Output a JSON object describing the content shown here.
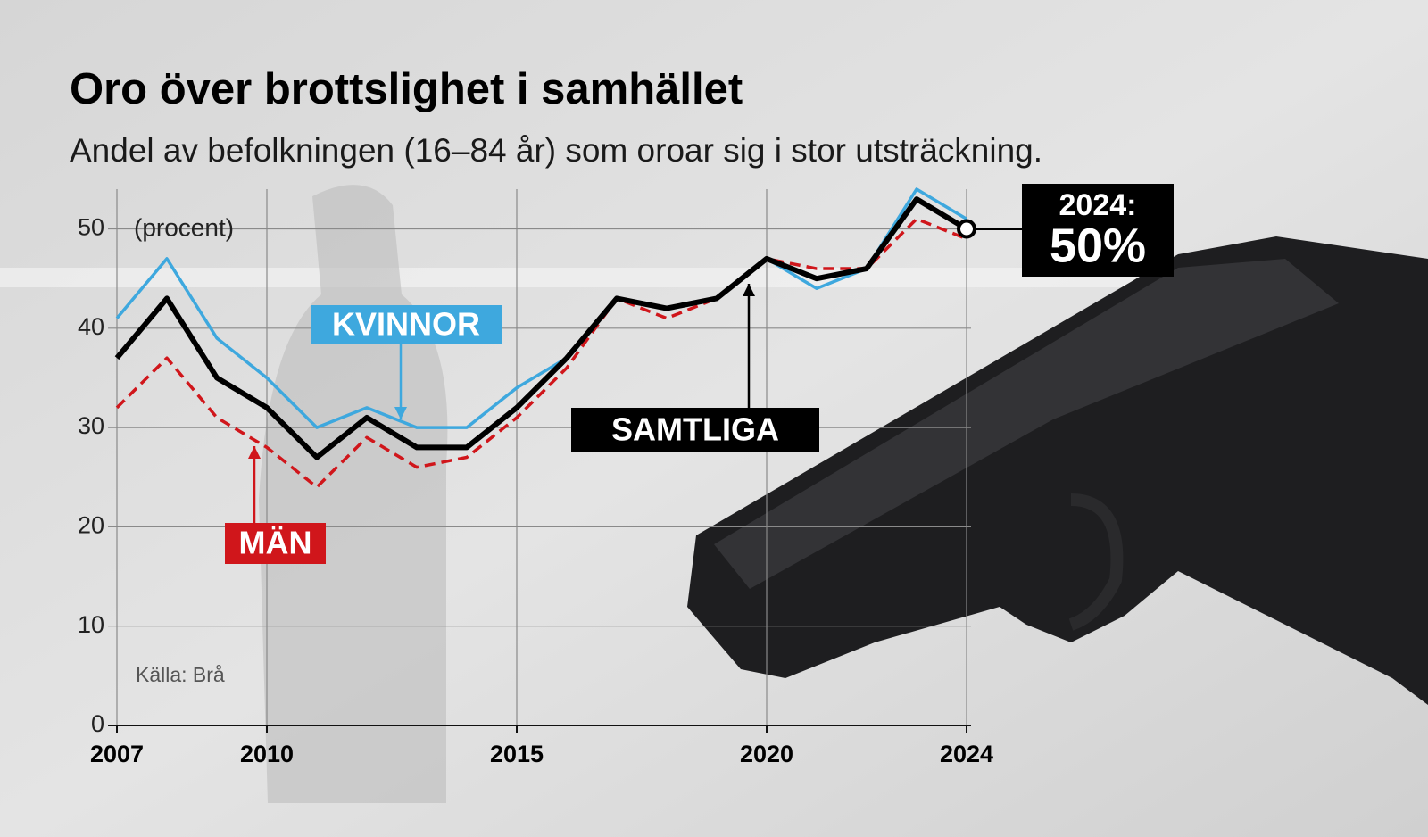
{
  "chart_data": {
    "type": "line",
    "title": "Oro över brottslighet i samhället",
    "subtitle": "Andel av befolkningen (16–84 år) som oroar sig i stor utsträckning.",
    "y_label": "(procent)",
    "source": "Källa: Brå",
    "end_annotation": "2024:",
    "x": [
      2007,
      2008,
      2009,
      2010,
      2011,
      2012,
      2013,
      2014,
      2015,
      2016,
      2017,
      2018,
      2019,
      2020,
      2021,
      2022,
      2023,
      2024
    ],
    "series": [
      {
        "name": "KVINNOR",
        "color": "#3ea8de",
        "style": "solid",
        "values": [
          41,
          47,
          39,
          35,
          30,
          32,
          30,
          30,
          34,
          37,
          43,
          42,
          43,
          47,
          44,
          46,
          54,
          51
        ]
      },
      {
        "name": "MÄN",
        "color": "#d0161b",
        "style": "dashed",
        "values": [
          32,
          37,
          31,
          28,
          24,
          29,
          26,
          27,
          31,
          36,
          43,
          41,
          43,
          47,
          46,
          46,
          51,
          49
        ]
      },
      {
        "name": "SAMTLIGA",
        "color": "#000000",
        "style": "solid",
        "values": [
          37,
          43,
          35,
          32,
          27,
          31,
          28,
          28,
          32,
          37,
          43,
          42,
          43,
          47,
          45,
          46,
          53,
          50
        ],
        "value_labels": [
          null,
          null,
          null,
          null,
          null,
          null,
          null,
          null,
          null,
          null,
          null,
          null,
          null,
          null,
          null,
          null,
          null,
          "50%"
        ]
      }
    ],
    "xlim": [
      2007,
      2024
    ],
    "xticks": [
      2007,
      2010,
      2015,
      2020,
      2024
    ],
    "ylim": [
      0,
      54
    ],
    "yticks": [
      0,
      10,
      20,
      30,
      40,
      50
    ],
    "grid": true
  }
}
